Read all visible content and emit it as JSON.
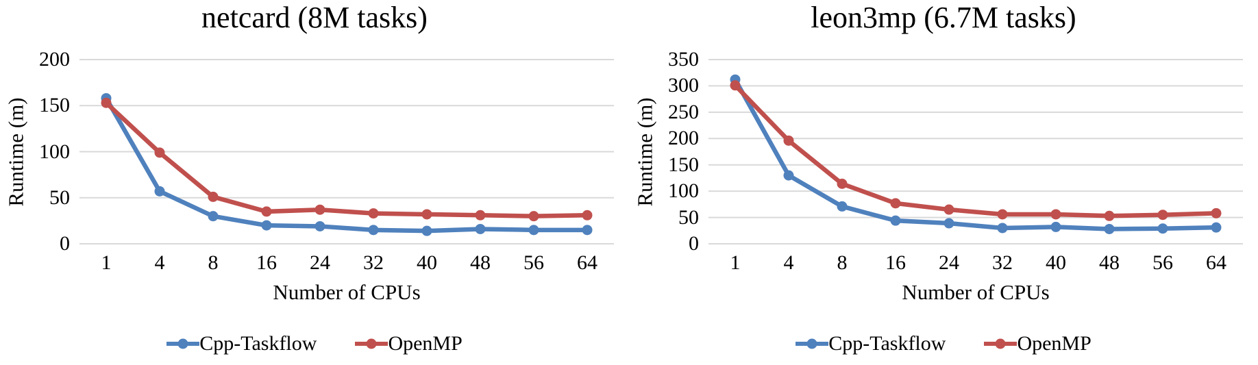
{
  "chart_data": [
    {
      "type": "line",
      "title": "netcard (8M tasks)",
      "xlabel": "Number of CPUs",
      "ylabel": "Runtime (m)",
      "categories": [
        1,
        4,
        8,
        16,
        24,
        32,
        40,
        48,
        56,
        64
      ],
      "ylim": [
        0,
        200
      ],
      "ytick_step": 50,
      "grid": "horizontal",
      "gridline_color": "#D9D9D9",
      "legend_position": "bottom",
      "series": [
        {
          "name": "Cpp-Taskflow",
          "color": "#4F81BD",
          "values": [
            158,
            57,
            30,
            20,
            19,
            15,
            14,
            16,
            15,
            15
          ]
        },
        {
          "name": "OpenMP",
          "color": "#C0504D",
          "values": [
            153,
            99,
            51,
            35,
            37,
            33,
            32,
            31,
            30,
            31
          ]
        }
      ]
    },
    {
      "type": "line",
      "title": "leon3mp (6.7M tasks)",
      "xlabel": "Number of CPUs",
      "ylabel": "Runtime (m)",
      "categories": [
        1,
        4,
        8,
        16,
        24,
        32,
        40,
        48,
        56,
        64
      ],
      "ylim": [
        0,
        350
      ],
      "ytick_step": 50,
      "grid": "horizontal",
      "gridline_color": "#D9D9D9",
      "legend_position": "bottom",
      "series": [
        {
          "name": "Cpp-Taskflow",
          "color": "#4F81BD",
          "values": [
            312,
            130,
            71,
            44,
            39,
            30,
            32,
            28,
            29,
            31
          ]
        },
        {
          "name": "OpenMP",
          "color": "#C0504D",
          "values": [
            301,
            196,
            114,
            77,
            65,
            56,
            56,
            53,
            55,
            58
          ]
        }
      ]
    }
  ]
}
